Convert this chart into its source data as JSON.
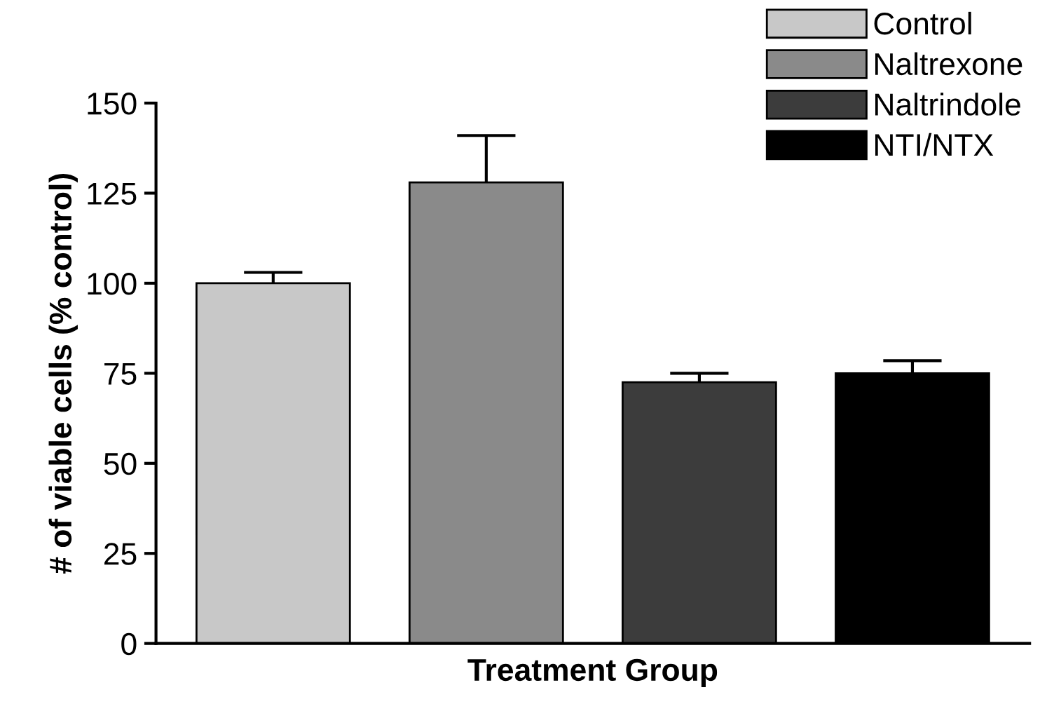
{
  "chart_data": {
    "type": "bar",
    "xlabel": "Treatment Group",
    "ylabel": "# of viable cells (% control)",
    "categories": [
      null,
      null,
      null,
      null
    ],
    "series": [
      {
        "name": "Control",
        "color": "#c8c8c8",
        "values": [
          100,
          null,
          null,
          null
        ],
        "errors": [
          [
            100,
            103
          ],
          null,
          null,
          null
        ]
      },
      {
        "name": "Naltrexone",
        "color": "#8a8a8a",
        "values": [
          null,
          128,
          null,
          null
        ],
        "errors": [
          null,
          [
            128,
            141
          ],
          null,
          null
        ]
      },
      {
        "name": "Naltrindole",
        "color": "#3c3c3c",
        "values": [
          null,
          null,
          72.5,
          null
        ],
        "errors": [
          null,
          null,
          [
            72.5,
            75
          ],
          null
        ]
      },
      {
        "name": "NTI/NTX",
        "color": "#000000",
        "values": [
          null,
          null,
          null,
          75
        ],
        "errors": [
          null,
          null,
          null,
          [
            75,
            78.5
          ]
        ]
      }
    ],
    "ylim": [
      0,
      150
    ],
    "yticks": [
      0,
      25,
      50,
      75,
      100,
      125,
      150
    ],
    "grid": false,
    "legend": "top right"
  }
}
